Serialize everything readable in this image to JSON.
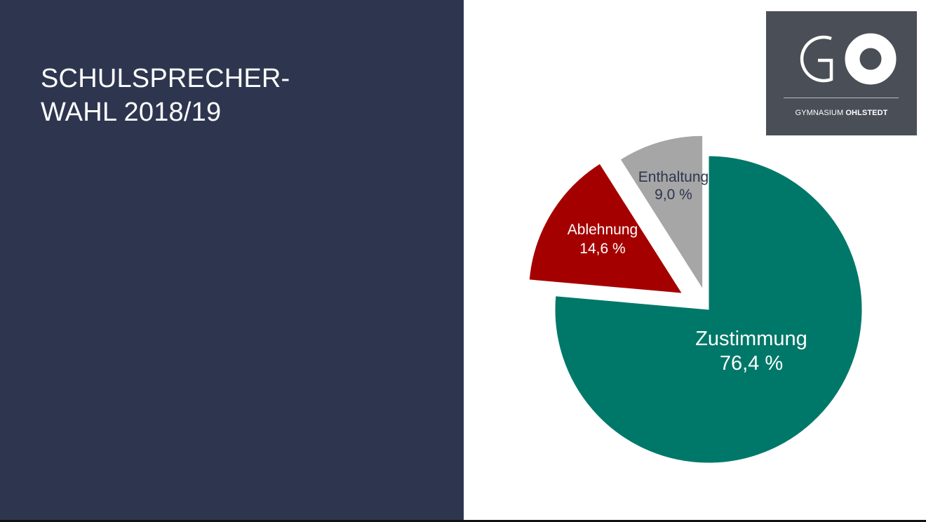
{
  "slide": {
    "title_line1": "SCHULSPRECHER-",
    "title_line2": "WAHL 2018/19",
    "panel_color": "#2e364f"
  },
  "logo": {
    "letters": "GO",
    "school_prefix": "GYMNASIUM",
    "school_name": "OHLSTEDT",
    "background": "#4a4e56"
  },
  "chart_data": {
    "type": "pie",
    "exploded": true,
    "slices": [
      {
        "label": "Zustimmung",
        "value": 76.4,
        "value_label": "76,4 %",
        "color": "#007869",
        "label_color": "#ffffff"
      },
      {
        "label": "Ablehnung",
        "value": 14.6,
        "value_label": "14,6 %",
        "color": "#a50000",
        "label_color": "#ffffff"
      },
      {
        "label": "Enthaltung",
        "value": 9.0,
        "value_label": "9,0 %",
        "color": "#a6a6a6",
        "label_color": "#2e364f"
      }
    ]
  }
}
